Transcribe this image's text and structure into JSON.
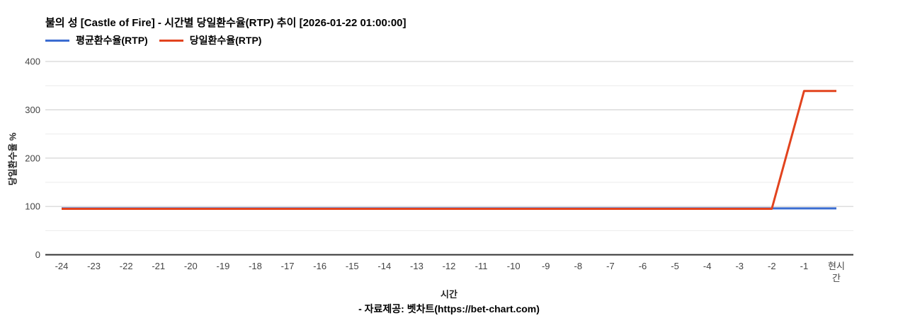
{
  "header": {
    "title": "불의 성 [Castle of Fire] - 시간별 당일환수율(RTP) 추이 [2026-01-22 01:00:00]"
  },
  "chart_data": {
    "type": "line",
    "categories": [
      "-24",
      "-23",
      "-22",
      "-21",
      "-20",
      "-19",
      "-18",
      "-17",
      "-16",
      "-15",
      "-14",
      "-13",
      "-12",
      "-11",
      "-10",
      "-9",
      "-8",
      "-7",
      "-6",
      "-5",
      "-4",
      "-3",
      "-2",
      "-1",
      "현시\n간"
    ],
    "series": [
      {
        "name": "평균환수율(RTP)",
        "color": "#3B6CD1",
        "values": [
          96,
          96,
          96,
          96,
          96,
          96,
          96,
          96,
          96,
          96,
          96,
          96,
          96,
          96,
          96,
          96,
          96,
          96,
          96,
          96,
          96,
          96,
          96,
          96,
          96
        ]
      },
      {
        "name": "당일환수율(RTP)",
        "color": "#E2431E",
        "values": [
          95,
          95,
          95,
          95,
          95,
          95,
          95,
          95,
          95,
          95,
          95,
          95,
          95,
          95,
          95,
          95,
          95,
          95,
          95,
          95,
          95,
          95,
          95,
          339,
          339
        ]
      }
    ],
    "title": "불의 성 [Castle of Fire] - 시간별 당일환수율(RTP) 추이 [2026-01-22 01:00:00]",
    "xlabel": "시간",
    "ylabel": "당일환수율 %",
    "ylim": [
      0,
      400
    ],
    "yticks_major": [
      0,
      100,
      200,
      300,
      400
    ],
    "yticks_minor": [
      50,
      150,
      250,
      350
    ],
    "grid": true,
    "legend_position": "top-left"
  },
  "colors": {
    "major_gridline": "#cccccc",
    "minor_gridline": "#ebebeb",
    "axis_baseline": "#333333",
    "tick_label": "#444444"
  },
  "footer": {
    "text": "- 자료제공: 벳차트(https://bet-chart.com)"
  }
}
